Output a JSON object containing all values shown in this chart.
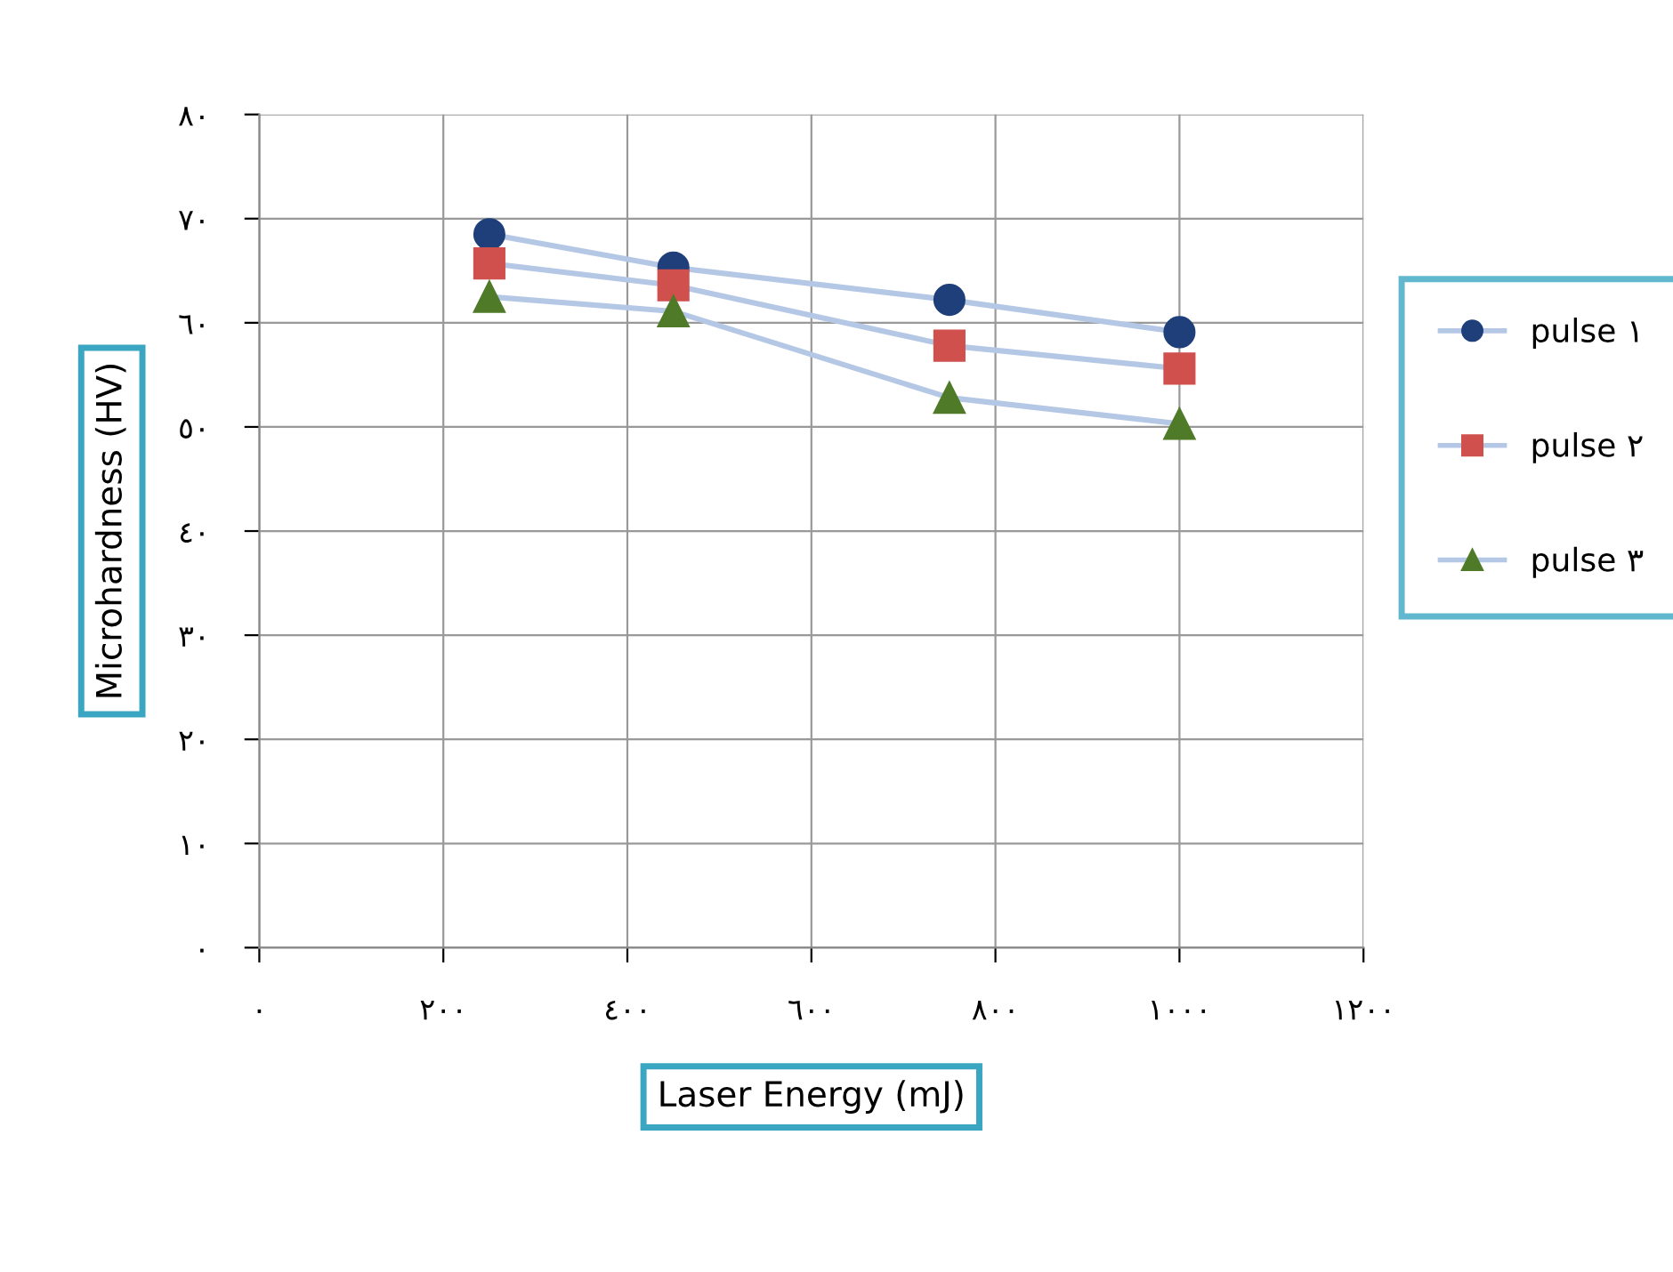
{
  "chart_data": {
    "type": "line",
    "xlabel": "Laser Energy (mJ)",
    "ylabel": "Microhardness (HV)",
    "x": [
      250,
      450,
      750,
      1000
    ],
    "series": [
      {
        "name": "pulse ١",
        "color": "#1f3f7a",
        "marker": "circle",
        "values": [
          68.5,
          65.3,
          62.2,
          59.1
        ]
      },
      {
        "name": "pulse ٢",
        "color": "#d0504d",
        "marker": "square",
        "values": [
          65.7,
          63.6,
          57.8,
          55.6
        ]
      },
      {
        "name": "pulse ٣",
        "color": "#4f7a28",
        "marker": "triangle",
        "values": [
          62.5,
          61.1,
          52.8,
          50.3
        ]
      }
    ],
    "xlim": [
      0,
      1200
    ],
    "ylim": [
      0,
      80
    ],
    "xticks": [
      {
        "value": 0,
        "label": "٠"
      },
      {
        "value": 200,
        "label": "٢٠٠"
      },
      {
        "value": 400,
        "label": "٤٠٠"
      },
      {
        "value": 600,
        "label": "٦٠٠"
      },
      {
        "value": 800,
        "label": "٨٠٠"
      },
      {
        "value": 1000,
        "label": "١٠٠٠"
      },
      {
        "value": 1200,
        "label": "١٢٠٠"
      }
    ],
    "yticks": [
      {
        "value": 0,
        "label": "٠"
      },
      {
        "value": 10,
        "label": "١٠"
      },
      {
        "value": 20,
        "label": "٢٠"
      },
      {
        "value": 30,
        "label": "٣٠"
      },
      {
        "value": 40,
        "label": "٤٠"
      },
      {
        "value": 50,
        "label": "٥٠"
      },
      {
        "value": 60,
        "label": "٦٠"
      },
      {
        "value": 70,
        "label": "٧٠"
      },
      {
        "value": 80,
        "label": "٨٠"
      }
    ],
    "grid": true,
    "legend": "right",
    "line_style": "solid"
  }
}
